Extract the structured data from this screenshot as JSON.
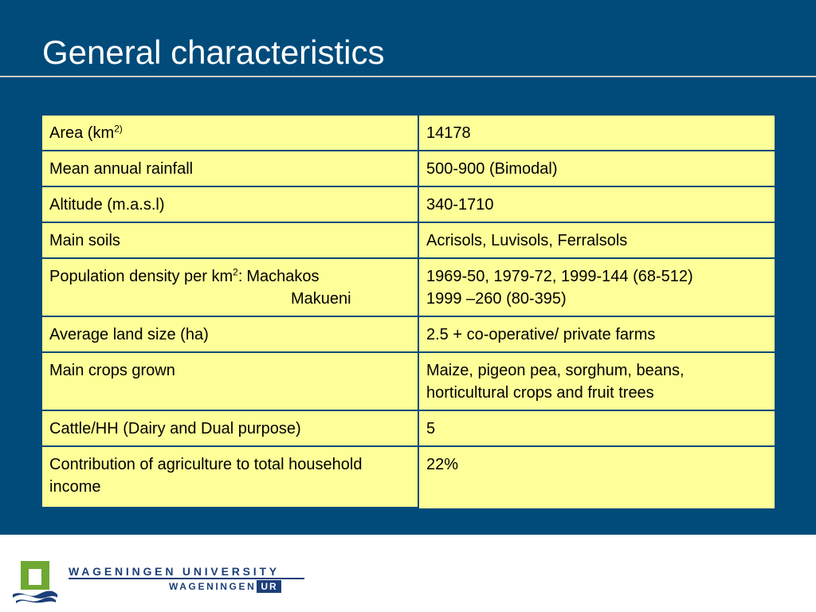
{
  "slide": {
    "title": "General characteristics"
  },
  "table": {
    "rows": [
      {
        "label": "Area (km",
        "label_sup": "2)",
        "value": "14178"
      },
      {
        "label": "Mean annual rainfall",
        "value": "500-900 (Bimodal)"
      },
      {
        "label": "Altitude (m.a.s.l)",
        "value": "340-1710"
      },
      {
        "label": "Main soils",
        "value": "Acrisols, Luvisols, Ferralsols"
      },
      {
        "label": "Population density per km",
        "label_sup": "2",
        "label_suffix": ":",
        "region_1": "Machakos",
        "region_2": "Makueni",
        "value_1": "1969-50, 1979-72, 1999-144 (68-512)",
        "value_2": "1999 –260 (80-395)"
      },
      {
        "label": "Average land size (ha)",
        "value": "2.5 + co-operative/ private farms"
      },
      {
        "label": "Main crops grown",
        "value": "Maize, pigeon pea, sorghum, beans, horticultural crops and fruit trees"
      },
      {
        "label": "Cattle/HH (Dairy and Dual purpose)",
        "value": "5"
      },
      {
        "label": "Contribution of agriculture to total household income",
        "value": "22%"
      }
    ]
  },
  "footer": {
    "university_name": "WAGENINGEN UNIVERSITY",
    "wur_text": "WAGENINGEN",
    "wur_box": "UR",
    "logo_icon": "wageningen-logo-icon"
  },
  "colors": {
    "slide_background": "#004b7a",
    "table_fill": "#ffff99",
    "brand_navy": "#1c3f79",
    "logo_green": "#6fa832"
  }
}
